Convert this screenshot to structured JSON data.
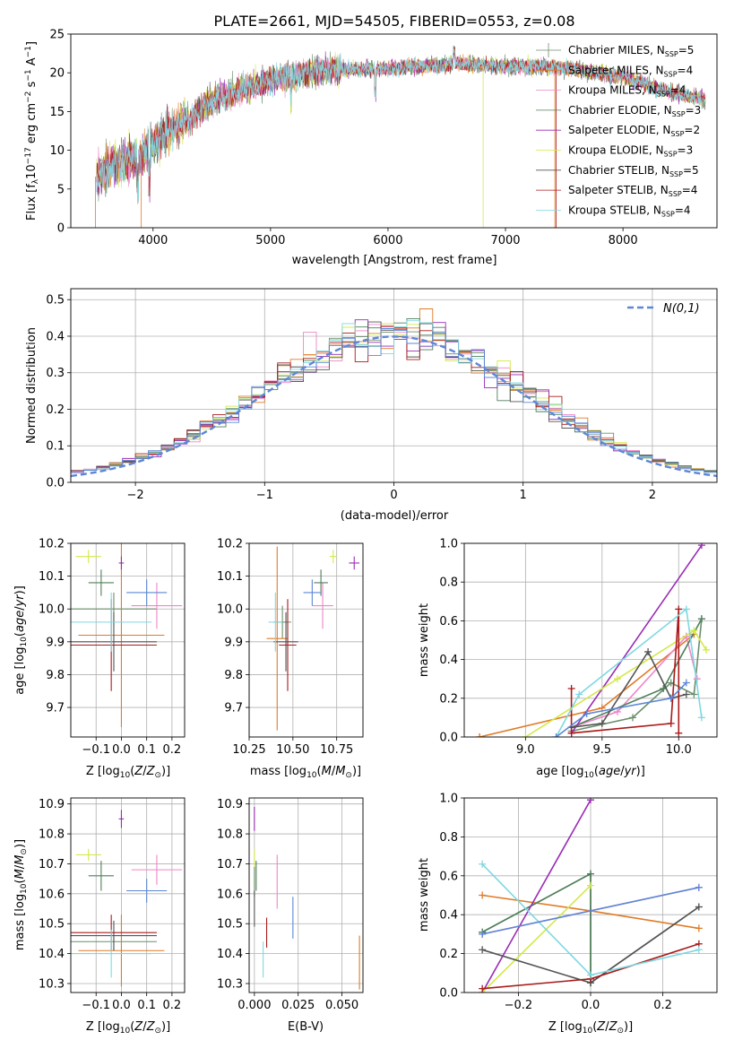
{
  "title": "PLATE=2661, MJD=54505, FIBERID=0553, z=0.08",
  "series": [
    {
      "name": "Chabrier MILES, N$_{SSP}$=5",
      "label": "Chabrier MILES, N",
      "n": "=5",
      "color": "#6b8f6b"
    },
    {
      "name": "Salpeter MILES, N$_{SSP}$=4",
      "label": "Salpeter MILES, N",
      "n": "=4",
      "color": "#e07b27"
    },
    {
      "name": "Kroupa MILES, N$_{SSP}$=4",
      "label": "Kroupa MILES, N",
      "n": "=4",
      "color": "#ee86c7"
    },
    {
      "name": "Chabrier ELODIE, N$_{SSP}$=3",
      "label": "Chabrier ELODIE, N",
      "n": "=3",
      "color": "#4f7f5a"
    },
    {
      "name": "Salpeter ELODIE, N$_{SSP}$=2",
      "label": "Salpeter ELODIE, N",
      "n": "=2",
      "color": "#9a2bb5"
    },
    {
      "name": "Kroupa ELODIE, N$_{SSP}$=3",
      "label": "Kroupa ELODIE, N",
      "n": "=3",
      "color": "#d4e84a"
    },
    {
      "name": "Chabrier STELIB, N$_{SSP}$=5",
      "label": "Chabrier STELIB, N",
      "n": "=5",
      "color": "#555555"
    },
    {
      "name": "Salpeter STELIB, N$_{SSP}$=4",
      "label": "Salpeter STELIB, N",
      "n": "=4",
      "color": "#aa1a1a"
    },
    {
      "name": "Kroupa STELIB, N$_{SSP}$=4",
      "label": "Kroupa STELIB, N",
      "n": "=4",
      "color": "#7fd8e0"
    }
  ],
  "chart_data": [
    {
      "id": "spectrum",
      "type": "line",
      "xlabel": "wavelength [Angstrom, rest frame]",
      "ylabel": "Flux [f_λ 10^-17 erg cm^-2 s^-1 A^-1]",
      "xlim": [
        3300,
        8800
      ],
      "ylim": [
        0,
        25
      ],
      "xticks": [
        4000,
        5000,
        6000,
        7000,
        8000
      ],
      "yticks": [
        0,
        5,
        10,
        15,
        20,
        25
      ],
      "continuum_x": [
        3500,
        3600,
        3700,
        3800,
        3900,
        4000,
        4100,
        4200,
        4300,
        4400,
        4500,
        4600,
        4700,
        4800,
        4900,
        5000,
        5200,
        5400,
        5600,
        5800,
        6000,
        6200,
        6400,
        6600,
        6800,
        7000,
        7200,
        7400,
        7600,
        7800,
        8000,
        8200,
        8400,
        8700
      ],
      "continuum_y": [
        6.5,
        7.5,
        8.5,
        8.8,
        9.2,
        10.8,
        12.3,
        13.2,
        14.0,
        15.2,
        16.5,
        17.0,
        17.6,
        18.0,
        18.5,
        19.0,
        19.6,
        20.2,
        20.4,
        20.5,
        20.5,
        20.8,
        21.0,
        21.2,
        21.0,
        20.8,
        20.8,
        20.8,
        20.5,
        20.0,
        19.5,
        18.5,
        17.5,
        16.5
      ],
      "legend_location": "upper right"
    },
    {
      "id": "residuals",
      "type": "histogram",
      "xlabel": "(data-model)/error",
      "ylabel": "Normed distribution",
      "xlim": [
        -2.5,
        2.5
      ],
      "ylim": [
        0,
        0.53
      ],
      "xticks": [
        -2,
        -1,
        0,
        1,
        2
      ],
      "yticks": [
        0.0,
        0.1,
        0.2,
        0.3,
        0.4,
        0.5
      ],
      "grid": true,
      "reference": {
        "label": "N(0,1)",
        "color": "#5b87d6"
      },
      "legend_location": "upper right"
    },
    {
      "id": "Z-age",
      "type": "scatter",
      "errorbars": true,
      "xlabel": "Z [log10(Z/Z⊙)]",
      "ylabel": "age [log10(age/yr)]",
      "xlim": [
        -0.2,
        0.25
      ],
      "ylim": [
        9.61,
        10.2
      ],
      "xticks": [
        -0.1,
        0.0,
        0.1,
        0.2
      ],
      "yticks": [
        9.7,
        9.8,
        9.9,
        10.0,
        10.1,
        10.2
      ],
      "grid": true,
      "points": [
        {
          "s": 0,
          "x": -0.03,
          "y": 10.0,
          "ex": 0.17,
          "ey": 0.05
        },
        {
          "s": 1,
          "x": 0.0,
          "y": 9.92,
          "ex": 0.17,
          "ey": 0.28
        },
        {
          "s": 2,
          "x": 0.14,
          "y": 10.01,
          "ex": 0.1,
          "ey": 0.07
        },
        {
          "s": 3,
          "x": -0.08,
          "y": 10.08,
          "ex": 0.05,
          "ey": 0.04
        },
        {
          "s": 4,
          "x": 0.0,
          "y": 10.14,
          "ex": 0.01,
          "ey": 0.02
        },
        {
          "s": 5,
          "x": -0.13,
          "y": 10.16,
          "ex": 0.05,
          "ey": 0.02
        },
        {
          "s": 6,
          "x": -0.03,
          "y": 9.9,
          "ex": 0.17,
          "ey": 0.09
        },
        {
          "s": 7,
          "x": -0.04,
          "y": 9.89,
          "ex": 0.18,
          "ey": 0.14
        },
        {
          "s": 8,
          "x": -0.04,
          "y": 9.96,
          "ex": 0.16,
          "ey": 0.09
        },
        {
          "s": 9,
          "x": 0.1,
          "y": 10.05,
          "ex": 0.08,
          "ey": 0.04
        },
        {
          "s": 10,
          "x": 0.14,
          "y": 10.01,
          "ex": 0.01,
          "ey": 0.07
        }
      ]
    },
    {
      "id": "mass-age",
      "type": "scatter",
      "errorbars": true,
      "xlabel": "mass [log10(M/M⊙)]",
      "ylabel": "",
      "xlim": [
        10.25,
        10.9
      ],
      "ylim": [
        9.61,
        10.2
      ],
      "xticks": [
        10.25,
        10.5,
        10.75
      ],
      "yticks": [
        9.7,
        9.8,
        9.9,
        10.0,
        10.1,
        10.2
      ],
      "grid": true,
      "points": [
        {
          "s": 0,
          "x": 10.44,
          "y": 9.96,
          "ex": 0.05,
          "ey": 0.05
        },
        {
          "s": 1,
          "x": 10.41,
          "y": 9.91,
          "ex": 0.06,
          "ey": 0.28
        },
        {
          "s": 2,
          "x": 10.67,
          "y": 10.01,
          "ex": 0.06,
          "ey": 0.07
        },
        {
          "s": 3,
          "x": 10.66,
          "y": 10.08,
          "ex": 0.04,
          "ey": 0.04
        },
        {
          "s": 4,
          "x": 10.85,
          "y": 10.14,
          "ex": 0.03,
          "ey": 0.02
        },
        {
          "s": 5,
          "x": 10.73,
          "y": 10.16,
          "ex": 0.02,
          "ey": 0.02
        },
        {
          "s": 6,
          "x": 10.46,
          "y": 9.9,
          "ex": 0.07,
          "ey": 0.09
        },
        {
          "s": 7,
          "x": 10.47,
          "y": 9.89,
          "ex": 0.05,
          "ey": 0.14
        },
        {
          "s": 8,
          "x": 10.4,
          "y": 9.96,
          "ex": 0.04,
          "ey": 0.09
        },
        {
          "s": 9,
          "x": 10.61,
          "y": 10.05,
          "ex": 0.05,
          "ey": 0.04
        }
      ]
    },
    {
      "id": "age-weight",
      "type": "line",
      "xlabel": "age [log10(age/yr)]",
      "ylabel": "mass weight",
      "xlim": [
        8.6,
        10.25
      ],
      "ylim": [
        0,
        1.0
      ],
      "xticks": [
        9.0,
        9.5,
        10.0
      ],
      "yticks": [
        0.0,
        0.2,
        0.4,
        0.6,
        0.8,
        1.0
      ],
      "grid": true,
      "lines": [
        {
          "s": 0,
          "x": [
            9.3,
            9.7,
            9.95,
            10.1,
            10.15
          ],
          "y": [
            0.03,
            0.1,
            0.28,
            0.22,
            0.61
          ]
        },
        {
          "s": 1,
          "x": 8.7,
          "y": 0.0
        },
        {
          "s": 1,
          "x": [
            8.7,
            9.5,
            10.1
          ],
          "y": [
            0.0,
            0.15,
            0.53
          ]
        },
        {
          "s": 2,
          "x": [
            9.3,
            9.6,
            10.05,
            10.12
          ],
          "y": [
            0.05,
            0.13,
            0.52,
            0.3
          ]
        },
        {
          "s": 3,
          "x": [
            9.3,
            9.9,
            10.15
          ],
          "y": [
            0.05,
            0.25,
            0.61
          ]
        },
        {
          "s": 4,
          "x": [
            9.3,
            10.15
          ],
          "y": [
            0.02,
            0.99
          ]
        },
        {
          "s": 5,
          "x": [
            9.0,
            9.6,
            10.1,
            10.18
          ],
          "y": [
            0.0,
            0.3,
            0.55,
            0.45
          ]
        },
        {
          "s": 6,
          "x": [
            9.3,
            9.5,
            9.8,
            9.95,
            10.05
          ],
          "y": [
            0.05,
            0.07,
            0.44,
            0.2,
            0.22
          ]
        },
        {
          "s": 7,
          "x": [
            9.3,
            9.3,
            9.95,
            10.0,
            10.0
          ],
          "y": [
            0.25,
            0.02,
            0.07,
            0.66,
            0.02
          ]
        },
        {
          "s": 8,
          "x": [
            9.2,
            9.35,
            10.05,
            10.15
          ],
          "y": [
            0.0,
            0.22,
            0.66,
            0.1
          ]
        },
        {
          "s": 9,
          "x": [
            9.2,
            9.4,
            9.95,
            10.05
          ],
          "y": [
            0.0,
            0.12,
            0.2,
            0.28
          ]
        }
      ]
    },
    {
      "id": "Z-mass",
      "type": "scatter",
      "errorbars": true,
      "xlabel": "Z [log10(Z/Z⊙)]",
      "ylabel": "mass [log10(M/M⊙)]",
      "xlim": [
        -0.2,
        0.25
      ],
      "ylim": [
        10.27,
        10.92
      ],
      "xticks": [
        -0.1,
        0.0,
        0.1,
        0.2
      ],
      "yticks": [
        10.3,
        10.4,
        10.5,
        10.6,
        10.7,
        10.8,
        10.9
      ],
      "grid": true,
      "points": [
        {
          "s": 0,
          "x": -0.03,
          "y": 10.44,
          "ex": 0.17,
          "ey": 0.03
        },
        {
          "s": 1,
          "x": 0.0,
          "y": 10.41,
          "ex": 0.17,
          "ey": 0.12
        },
        {
          "s": 2,
          "x": 0.14,
          "y": 10.68,
          "ex": 0.1,
          "ey": 0.05
        },
        {
          "s": 3,
          "x": -0.08,
          "y": 10.66,
          "ex": 0.05,
          "ey": 0.05
        },
        {
          "s": 4,
          "x": 0.0,
          "y": 10.85,
          "ex": 0.01,
          "ey": 0.03
        },
        {
          "s": 5,
          "x": -0.13,
          "y": 10.73,
          "ex": 0.05,
          "ey": 0.02
        },
        {
          "s": 6,
          "x": -0.03,
          "y": 10.46,
          "ex": 0.17,
          "ey": 0.05
        },
        {
          "s": 7,
          "x": -0.04,
          "y": 10.47,
          "ex": 0.18,
          "ey": 0.06
        },
        {
          "s": 8,
          "x": -0.04,
          "y": 10.4,
          "ex": 0.16,
          "ey": 0.08
        },
        {
          "s": 9,
          "x": 0.1,
          "y": 10.61,
          "ex": 0.08,
          "ey": 0.04
        },
        {
          "s": 10,
          "x": 0.14,
          "y": 10.55,
          "ex": 0.01,
          "ey": 0.1
        }
      ]
    },
    {
      "id": "ebv-mass",
      "type": "scatter",
      "errorbars": true,
      "xlabel": "E(B-V)",
      "ylabel": "",
      "xlim": [
        -0.003,
        0.062
      ],
      "ylim": [
        10.27,
        10.92
      ],
      "xticks": [
        0.0,
        0.025,
        0.05
      ],
      "yticks": [
        10.3,
        10.4,
        10.5,
        10.6,
        10.7,
        10.8,
        10.9
      ],
      "grid": true,
      "points": [
        {
          "s": 0,
          "x": 0.0,
          "y": 10.64,
          "ex": 0,
          "ey": 0.05
        },
        {
          "s": 1,
          "x": 0.06,
          "y": 10.37,
          "ex": 0,
          "ey": 0.09
        },
        {
          "s": 2,
          "x": 0.013,
          "y": 10.64,
          "ex": 0,
          "ey": 0.09
        },
        {
          "s": 3,
          "x": 0.001,
          "y": 10.66,
          "ex": 0,
          "ey": 0.05
        },
        {
          "s": 4,
          "x": 0.0,
          "y": 10.85,
          "ex": 0,
          "ey": 0.04
        },
        {
          "s": 5,
          "x": 0.0,
          "y": 10.72,
          "ex": 0,
          "ey": 0.03
        },
        {
          "s": 6,
          "x": 0.0,
          "y": 10.55,
          "ex": 0,
          "ey": 0.06
        },
        {
          "s": 7,
          "x": 0.007,
          "y": 10.47,
          "ex": 0,
          "ey": 0.05
        },
        {
          "s": 8,
          "x": 0.005,
          "y": 10.38,
          "ex": 0,
          "ey": 0.06
        },
        {
          "s": 9,
          "x": 0.022,
          "y": 10.52,
          "ex": 0,
          "ey": 0.07
        }
      ]
    },
    {
      "id": "Z-weight",
      "type": "line",
      "xlabel": "Z [log10(Z/Z⊙)]",
      "ylabel": "mass weight",
      "xlim": [
        -0.35,
        0.35
      ],
      "ylim": [
        0,
        1.0
      ],
      "xticks": [
        -0.2,
        0.0,
        0.2
      ],
      "yticks": [
        0.0,
        0.2,
        0.4,
        0.6,
        0.8,
        1.0
      ],
      "grid": true,
      "lines": [
        {
          "s": 0,
          "x": [
            -0.3,
            0.0,
            0.0,
            0.3
          ],
          "y": [
            0.31,
            0.61,
            0.05,
            0.44
          ]
        },
        {
          "s": 1,
          "x": [
            -0.3,
            0.0,
            0.3
          ],
          "y": [
            0.5,
            0.42,
            0.33
          ]
        },
        {
          "s": 2,
          "x": [
            -0.3,
            0.0,
            0.3
          ],
          "y": [
            0.3,
            0.42,
            0.54
          ]
        },
        {
          "s": 3,
          "x": [
            -0.3,
            0.0,
            0.0
          ],
          "y": [
            0.31,
            0.61,
            0.05
          ]
        },
        {
          "s": 4,
          "x": [
            -0.3,
            0.0
          ],
          "y": [
            0.0,
            0.99
          ]
        },
        {
          "s": 5,
          "x": [
            -0.3,
            0.0
          ],
          "y": [
            0.0,
            0.55
          ]
        },
        {
          "s": 6,
          "x": [
            -0.3,
            0.0,
            0.3
          ],
          "y": [
            0.22,
            0.05,
            0.44
          ]
        },
        {
          "s": 7,
          "x": [
            -0.3,
            0.0,
            0.3
          ],
          "y": [
            0.02,
            0.07,
            0.25
          ]
        },
        {
          "s": 8,
          "x": [
            -0.3,
            0.0,
            0.3
          ],
          "y": [
            0.66,
            0.09,
            0.22
          ]
        },
        {
          "s": 9,
          "x": [
            -0.3,
            0.3
          ],
          "y": [
            0.3,
            0.54
          ]
        }
      ]
    }
  ]
}
